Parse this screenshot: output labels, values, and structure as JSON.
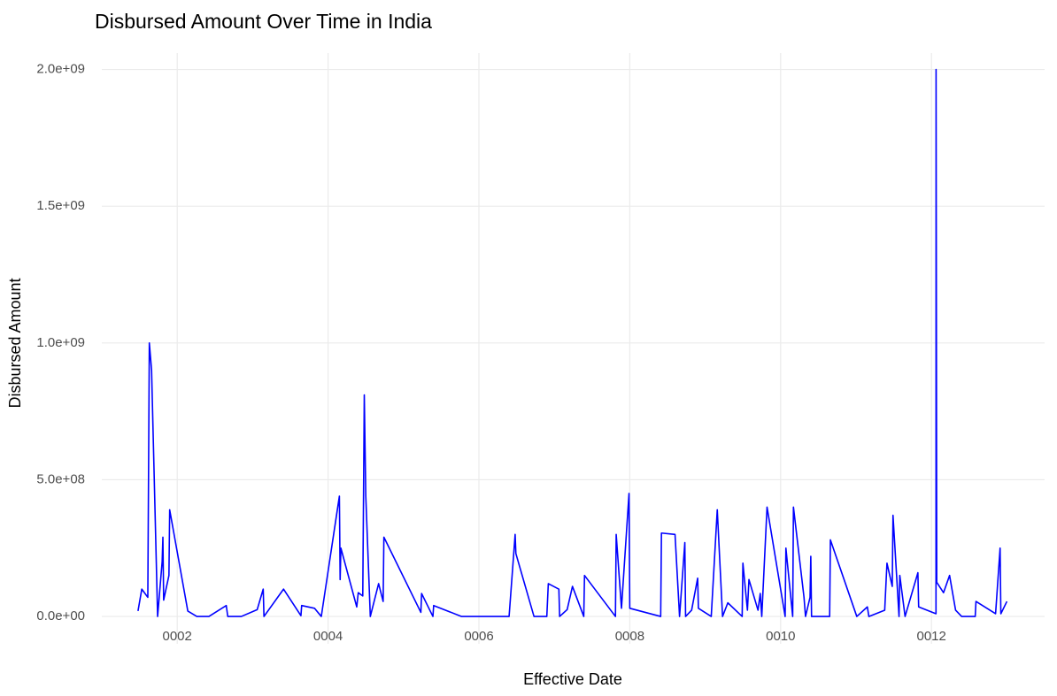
{
  "chart_data": {
    "type": "line",
    "title": "Disbursed Amount Over Time in India",
    "x_label": "Effective Date",
    "y_label": "Disbursed Amount",
    "color": "#0000ff",
    "grid": true,
    "xlim": [
      1.0,
      13.5
    ],
    "xticks": [
      {
        "value": 2,
        "label": "0002"
      },
      {
        "value": 4,
        "label": "0004"
      },
      {
        "value": 6,
        "label": "0006"
      },
      {
        "value": 8,
        "label": "0008"
      },
      {
        "value": 10,
        "label": "0010"
      },
      {
        "value": 12,
        "label": "0012"
      }
    ],
    "ylim": [
      -100000000,
      2060000000
    ],
    "yticks": [
      {
        "value": 0,
        "label": "0.0e+00"
      },
      {
        "value": 500000000,
        "label": "5.0e+08"
      },
      {
        "value": 1000000000,
        "label": "1.0e+09"
      },
      {
        "value": 1500000000,
        "label": "1.5e+09"
      },
      {
        "value": 2000000000,
        "label": "2.0e+09"
      }
    ],
    "x": [
      1.48,
      1.53,
      1.61,
      1.63,
      1.66,
      1.74,
      1.8,
      1.81,
      1.82,
      1.89,
      1.9,
      2.14,
      2.26,
      2.42,
      2.65,
      2.67,
      2.85,
      3.06,
      3.14,
      3.15,
      3.41,
      3.64,
      3.65,
      3.82,
      3.91,
      4.15,
      4.16,
      4.17,
      4.38,
      4.4,
      4.46,
      4.48,
      4.5,
      4.56,
      4.67,
      4.73,
      4.74,
      5.23,
      5.24,
      5.39,
      5.4,
      5.77,
      6.4,
      6.48,
      6.49,
      6.73,
      6.9,
      6.92,
      7.06,
      7.07,
      7.17,
      7.24,
      7.39,
      7.4,
      7.81,
      7.82,
      7.89,
      7.99,
      8.0,
      8.41,
      8.42,
      8.6,
      8.66,
      8.73,
      8.74,
      8.82,
      8.9,
      8.91,
      9.08,
      9.16,
      9.23,
      9.3,
      9.49,
      9.5,
      9.56,
      9.58,
      9.7,
      9.73,
      9.75,
      9.82,
      10.06,
      10.07,
      10.16,
      10.17,
      10.31,
      10.33,
      10.39,
      10.4,
      10.41,
      10.65,
      10.66,
      11.01,
      11.15,
      11.17,
      11.38,
      11.41,
      11.48,
      11.49,
      11.57,
      11.58,
      11.65,
      11.82,
      11.83,
      12.06,
      12.061,
      12.07,
      12.16,
      12.24,
      12.32,
      12.4,
      12.5,
      12.58,
      12.59,
      12.85,
      12.91,
      12.92,
      13.0
    ],
    "values": [
      20000000,
      100000000,
      70000000,
      1000000000,
      900000000,
      0,
      200000000,
      290000000,
      60000000,
      150000000,
      390000000,
      20000000,
      0,
      0,
      40000000,
      0,
      0,
      25000000,
      100000000,
      0,
      100000000,
      3000000,
      40000000,
      30000000,
      0,
      440000000,
      135000000,
      250000000,
      35000000,
      87000000,
      75000000,
      810000000,
      440000000,
      0,
      120000000,
      55000000,
      290000000,
      15000000,
      84000000,
      0,
      40000000,
      0,
      0,
      300000000,
      230000000,
      0,
      0,
      120000000,
      100000000,
      0,
      25000000,
      110000000,
      0,
      150000000,
      0,
      300000000,
      30000000,
      450000000,
      30000000,
      0,
      305000000,
      300000000,
      0,
      270000000,
      0,
      23000000,
      140000000,
      30000000,
      0,
      390000000,
      0,
      50000000,
      0,
      195000000,
      23000000,
      135000000,
      23000000,
      84000000,
      0,
      400000000,
      0,
      250000000,
      0,
      400000000,
      70000000,
      0,
      70000000,
      220000000,
      0,
      0,
      280000000,
      0,
      35000000,
      0,
      23000000,
      195000000,
      110000000,
      370000000,
      0,
      150000000,
      0,
      160000000,
      35000000,
      10000000,
      2000000000,
      125000000,
      87000000,
      150000000,
      23000000,
      0,
      0,
      0,
      55000000,
      10000000,
      250000000,
      10000000,
      55000000
    ]
  }
}
